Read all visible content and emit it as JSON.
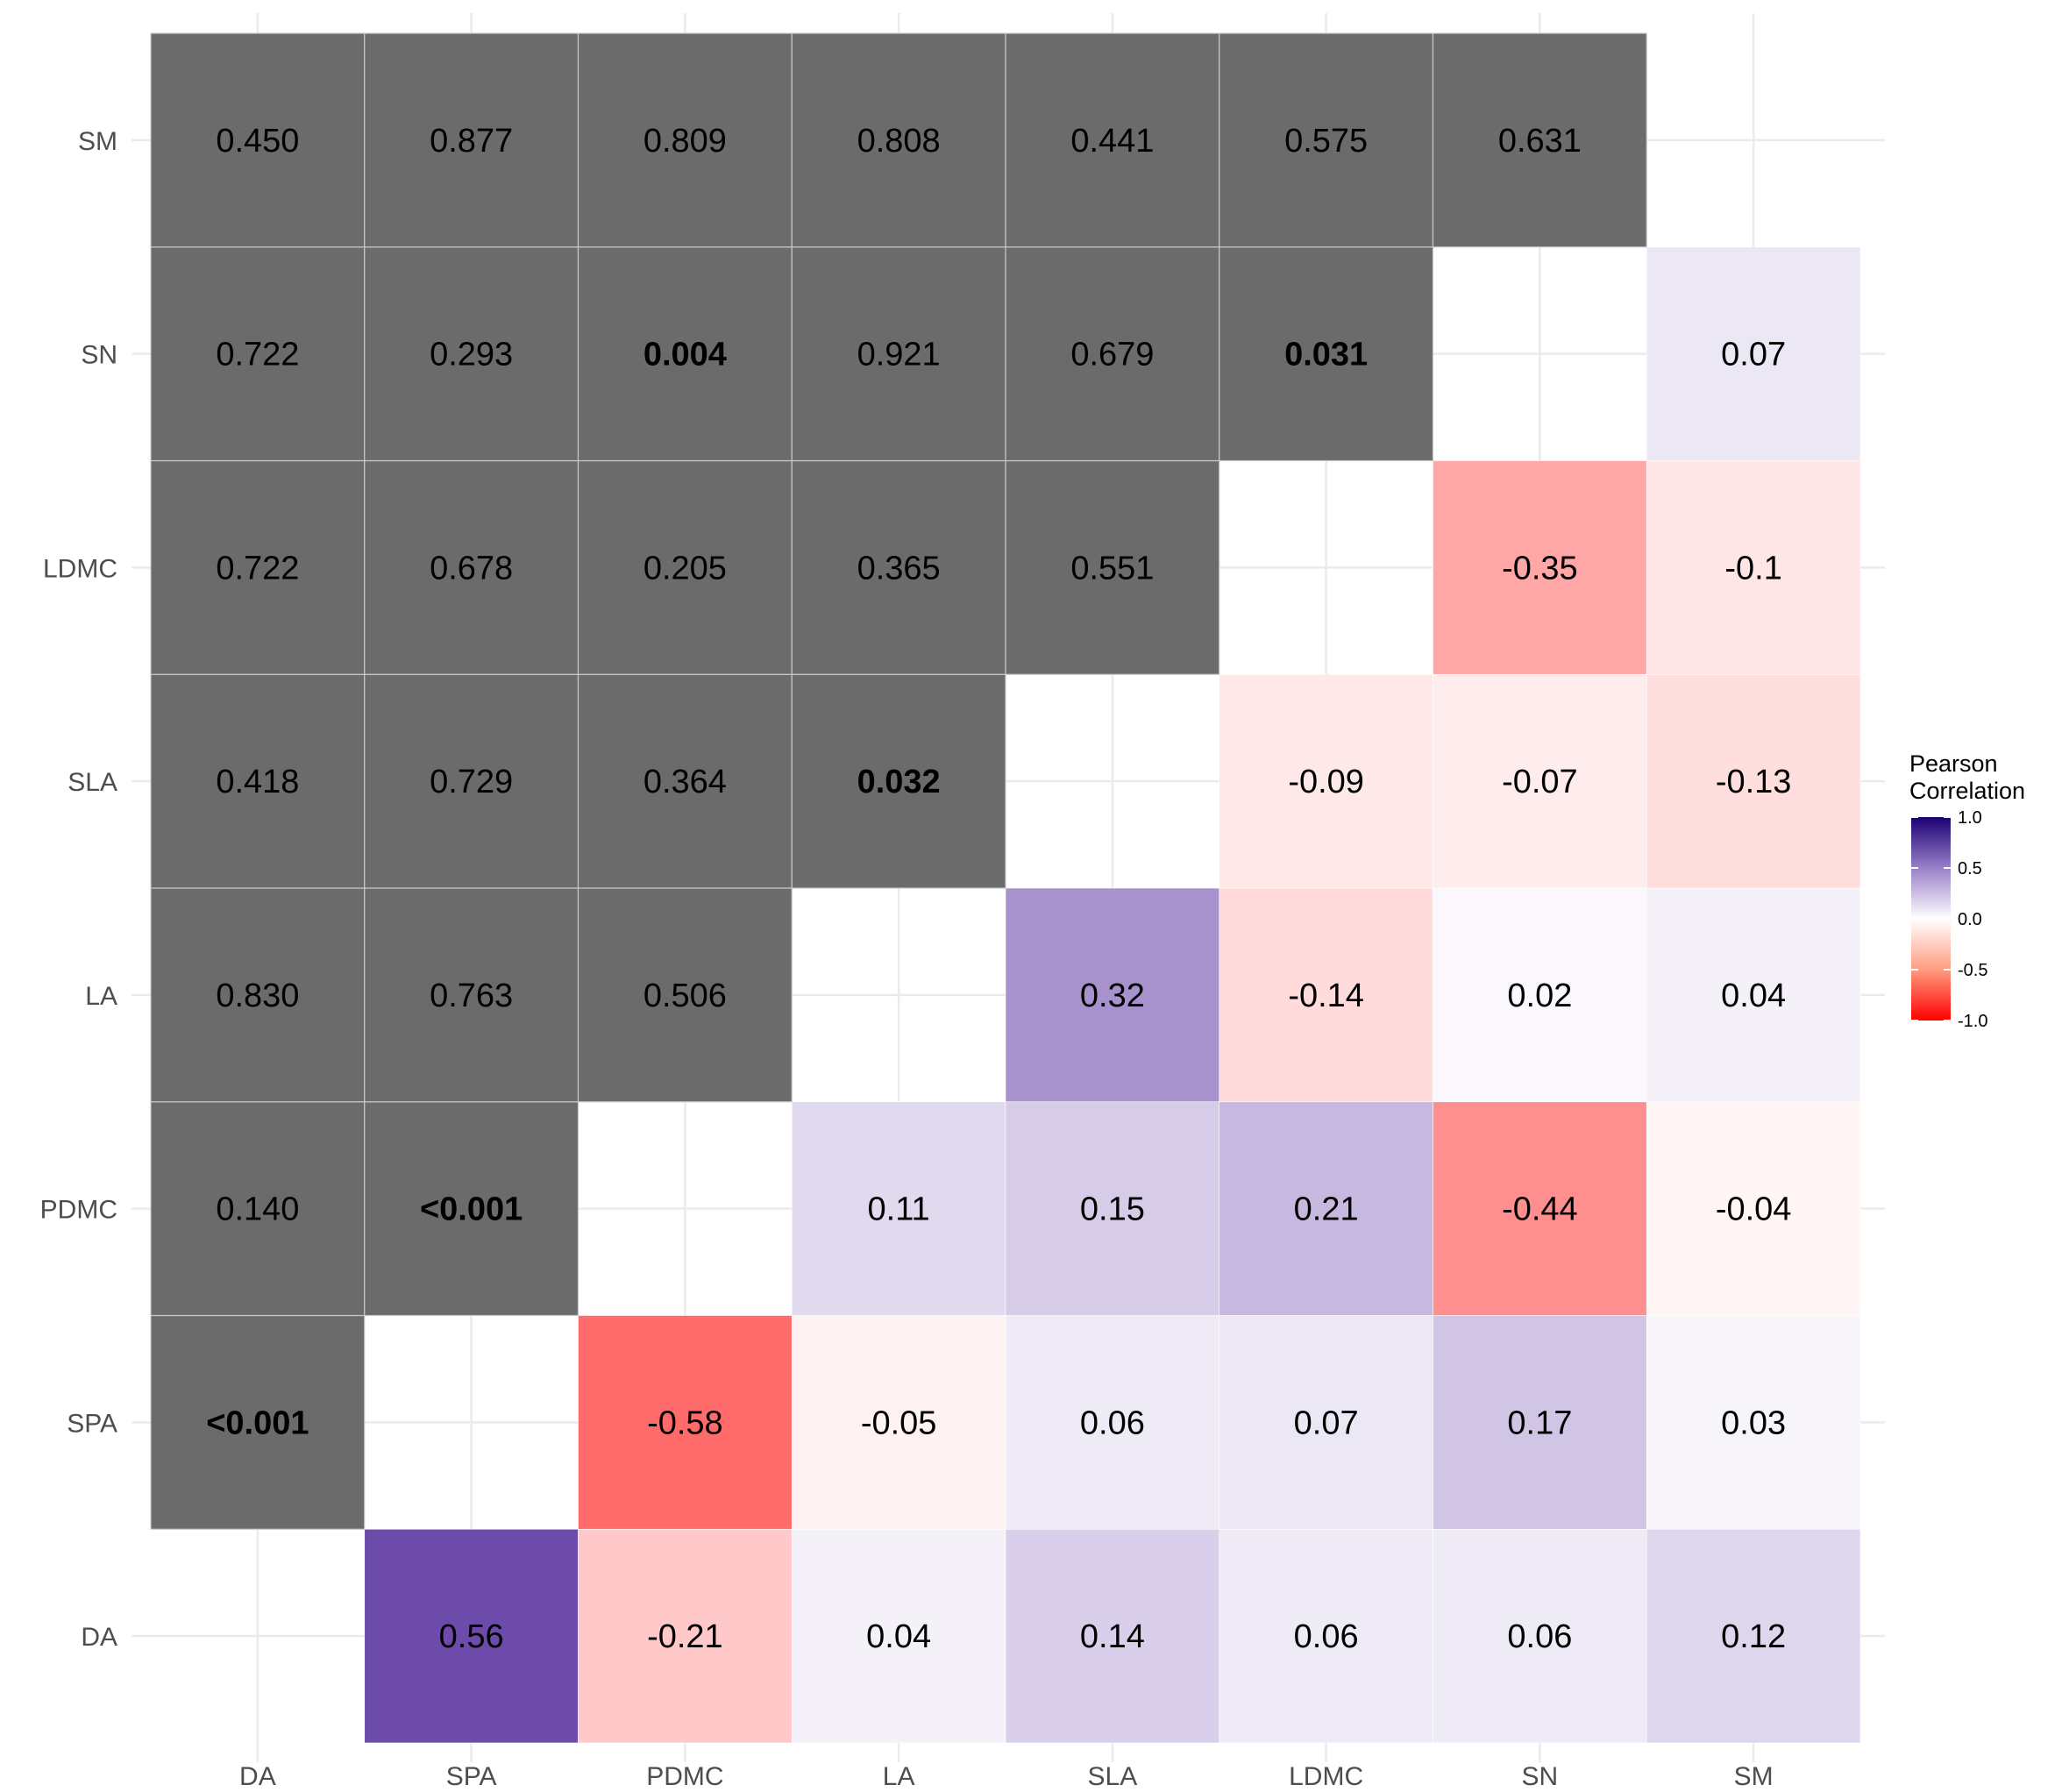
{
  "chart_data": {
    "type": "heatmap",
    "x_categories": [
      "DA",
      "SPA",
      "PDMC",
      "LA",
      "SLA",
      "LDMC",
      "SN",
      "SM"
    ],
    "y_categories": [
      "DA",
      "SPA",
      "PDMC",
      "LA",
      "SLA",
      "LDMC",
      "SN",
      "SM"
    ],
    "lower_triangle": {
      "description": "Pearson correlation coefficients (x column index < ... shown below diagonal)",
      "cells": [
        {
          "x": "SPA",
          "y": "DA",
          "value": 0.56,
          "label": "0.56"
        },
        {
          "x": "PDMC",
          "y": "DA",
          "value": -0.21,
          "label": "-0.21"
        },
        {
          "x": "LA",
          "y": "DA",
          "value": 0.04,
          "label": "0.04"
        },
        {
          "x": "SLA",
          "y": "DA",
          "value": 0.14,
          "label": "0.14"
        },
        {
          "x": "LDMC",
          "y": "DA",
          "value": 0.06,
          "label": "0.06"
        },
        {
          "x": "SN",
          "y": "DA",
          "value": 0.06,
          "label": "0.06"
        },
        {
          "x": "SM",
          "y": "DA",
          "value": 0.12,
          "label": "0.12"
        },
        {
          "x": "PDMC",
          "y": "SPA",
          "value": -0.58,
          "label": "-0.58"
        },
        {
          "x": "LA",
          "y": "SPA",
          "value": -0.05,
          "label": "-0.05"
        },
        {
          "x": "SLA",
          "y": "SPA",
          "value": 0.06,
          "label": "0.06"
        },
        {
          "x": "LDMC",
          "y": "SPA",
          "value": 0.07,
          "label": "0.07"
        },
        {
          "x": "SN",
          "y": "SPA",
          "value": 0.17,
          "label": "0.17"
        },
        {
          "x": "SM",
          "y": "SPA",
          "value": 0.03,
          "label": "0.03"
        },
        {
          "x": "LA",
          "y": "PDMC",
          "value": 0.11,
          "label": "0.11"
        },
        {
          "x": "SLA",
          "y": "PDMC",
          "value": 0.15,
          "label": "0.15"
        },
        {
          "x": "LDMC",
          "y": "PDMC",
          "value": 0.21,
          "label": "0.21"
        },
        {
          "x": "SN",
          "y": "PDMC",
          "value": -0.44,
          "label": "-0.44"
        },
        {
          "x": "SM",
          "y": "PDMC",
          "value": -0.04,
          "label": "-0.04"
        },
        {
          "x": "SLA",
          "y": "LA",
          "value": 0.32,
          "label": "0.32"
        },
        {
          "x": "LDMC",
          "y": "LA",
          "value": -0.14,
          "label": "-0.14"
        },
        {
          "x": "SN",
          "y": "LA",
          "value": 0.02,
          "label": "0.02"
        },
        {
          "x": "SM",
          "y": "LA",
          "value": 0.04,
          "label": "0.04"
        },
        {
          "x": "LDMC",
          "y": "SLA",
          "value": -0.09,
          "label": "-0.09"
        },
        {
          "x": "SN",
          "y": "SLA",
          "value": -0.07,
          "label": "-0.07"
        },
        {
          "x": "SM",
          "y": "SLA",
          "value": -0.13,
          "label": "-0.13"
        },
        {
          "x": "SN",
          "y": "LDMC",
          "value": -0.35,
          "label": "-0.35"
        },
        {
          "x": "SM",
          "y": "LDMC",
          "value": -0.1,
          "label": "-0.1"
        },
        {
          "x": "SM",
          "y": "SN",
          "value": 0.07,
          "label": "0.07"
        }
      ]
    },
    "upper_triangle": {
      "description": "p-values shown on grey cells; significant values in bold",
      "cells": [
        {
          "x": "DA",
          "y": "SPA",
          "label": "<0.001",
          "bold": true
        },
        {
          "x": "DA",
          "y": "PDMC",
          "label": "0.140",
          "bold": false
        },
        {
          "x": "SPA",
          "y": "PDMC",
          "label": "<0.001",
          "bold": true
        },
        {
          "x": "DA",
          "y": "LA",
          "label": "0.830",
          "bold": false
        },
        {
          "x": "SPA",
          "y": "LA",
          "label": "0.763",
          "bold": false
        },
        {
          "x": "PDMC",
          "y": "LA",
          "label": "0.506",
          "bold": false
        },
        {
          "x": "DA",
          "y": "SLA",
          "label": "0.418",
          "bold": false
        },
        {
          "x": "SPA",
          "y": "SLA",
          "label": "0.729",
          "bold": false
        },
        {
          "x": "PDMC",
          "y": "SLA",
          "label": "0.364",
          "bold": false
        },
        {
          "x": "LA",
          "y": "SLA",
          "label": "0.032",
          "bold": true
        },
        {
          "x": "DA",
          "y": "LDMC",
          "label": "0.722",
          "bold": false
        },
        {
          "x": "SPA",
          "y": "LDMC",
          "label": "0.678",
          "bold": false
        },
        {
          "x": "PDMC",
          "y": "LDMC",
          "label": "0.205",
          "bold": false
        },
        {
          "x": "LA",
          "y": "LDMC",
          "label": "0.365",
          "bold": false
        },
        {
          "x": "SLA",
          "y": "LDMC",
          "label": "0.551",
          "bold": false
        },
        {
          "x": "DA",
          "y": "SN",
          "label": "0.722",
          "bold": false
        },
        {
          "x": "SPA",
          "y": "SN",
          "label": "0.293",
          "bold": false
        },
        {
          "x": "PDMC",
          "y": "SN",
          "label": "0.004",
          "bold": true
        },
        {
          "x": "LA",
          "y": "SN",
          "label": "0.921",
          "bold": false
        },
        {
          "x": "SLA",
          "y": "SN",
          "label": "0.679",
          "bold": false
        },
        {
          "x": "LDMC",
          "y": "SN",
          "label": "0.031",
          "bold": true
        },
        {
          "x": "DA",
          "y": "SM",
          "label": "0.450",
          "bold": false
        },
        {
          "x": "SPA",
          "y": "SM",
          "label": "0.877",
          "bold": false
        },
        {
          "x": "PDMC",
          "y": "SM",
          "label": "0.809",
          "bold": false
        },
        {
          "x": "LA",
          "y": "SM",
          "label": "0.808",
          "bold": false
        },
        {
          "x": "SLA",
          "y": "SM",
          "label": "0.441",
          "bold": false
        },
        {
          "x": "LDMC",
          "y": "SM",
          "label": "0.575",
          "bold": false
        },
        {
          "x": "SN",
          "y": "SM",
          "label": "0.631",
          "bold": false
        }
      ]
    },
    "legend": {
      "title_lines": [
        "Pearson",
        "Correlation"
      ],
      "placement": "right",
      "range": [
        -1.0,
        1.0
      ],
      "ticks": [
        "1.0",
        "0.5",
        "0.0",
        "-0.5",
        "-1.0"
      ],
      "tick_values": [
        1.0,
        0.5,
        0.0,
        -0.5,
        -1.0
      ]
    },
    "colors": {
      "high": "#1a0073",
      "mid_high": "#7755b3",
      "mid": "#ffffff",
      "low": "#ff0000",
      "pvalue_cell": "#6b6b6b",
      "grid": "#ebebeb"
    },
    "grid": true
  }
}
